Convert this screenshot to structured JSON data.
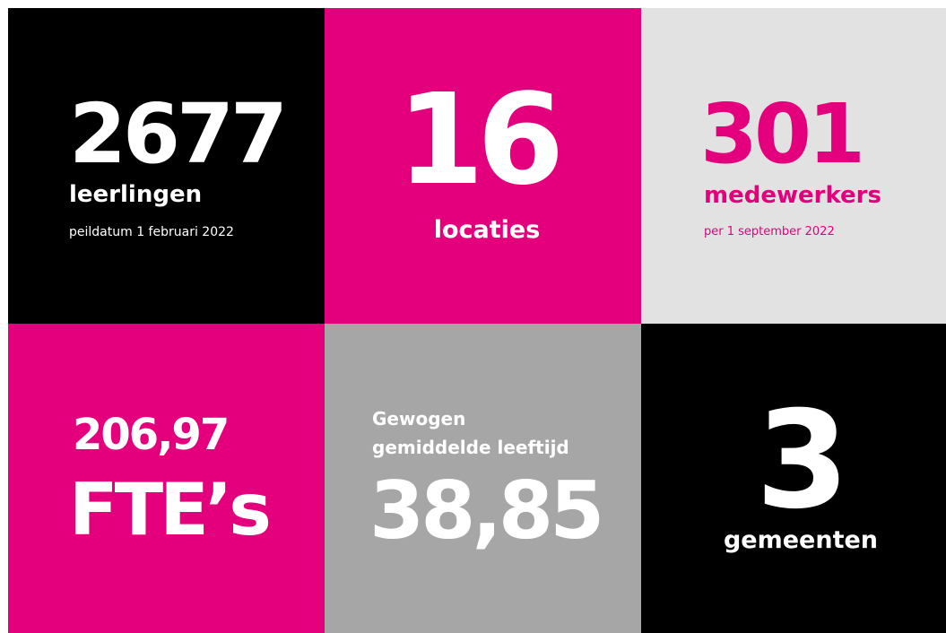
{
  "tiles": [
    {
      "number": "2677",
      "label": "leerlingen",
      "note": "peildatum 1 februari 2022"
    },
    {
      "number": "16",
      "label": "locaties"
    },
    {
      "number": "301",
      "label": "medewerkers",
      "note": "per 1 september 2022"
    },
    {
      "number": "206,97",
      "label": "FTE’s"
    },
    {
      "heading": [
        "Gewogen",
        "gemiddelde leeftijd"
      ],
      "number": "38,85"
    },
    {
      "number": "3",
      "label": "gemeenten"
    }
  ]
}
